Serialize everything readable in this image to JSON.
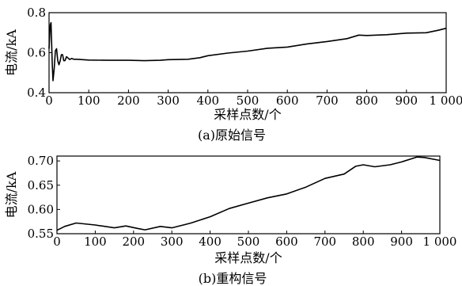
{
  "chart_data": [
    {
      "type": "line",
      "caption": "(a)原始信号",
      "xlabel": "采样点数/个",
      "ylabel": "电流/kA",
      "xlim": [
        0,
        1000
      ],
      "ylim": [
        0.4,
        0.8
      ],
      "x_ticks": [
        {
          "value": 0,
          "label": "0"
        },
        {
          "value": 100,
          "label": "100"
        },
        {
          "value": 200,
          "label": "200"
        },
        {
          "value": 300,
          "label": "300"
        },
        {
          "value": 400,
          "label": "400"
        },
        {
          "value": 500,
          "label": "500"
        },
        {
          "value": 600,
          "label": "600"
        },
        {
          "value": 700,
          "label": "700"
        },
        {
          "value": 800,
          "label": "800"
        },
        {
          "value": 900,
          "label": "900"
        },
        {
          "value": 1000,
          "label": "1 000"
        }
      ],
      "y_ticks": [
        {
          "value": 0.4,
          "label": "0.4"
        },
        {
          "value": 0.6,
          "label": "0.6"
        },
        {
          "value": 0.8,
          "label": "0.8"
        }
      ],
      "grid": false,
      "series": [
        {
          "color": "#000000",
          "points": [
            [
              0,
              0.62
            ],
            [
              3,
              0.74
            ],
            [
              5,
              0.75
            ],
            [
              8,
              0.55
            ],
            [
              10,
              0.46
            ],
            [
              13,
              0.52
            ],
            [
              16,
              0.61
            ],
            [
              19,
              0.62
            ],
            [
              22,
              0.56
            ],
            [
              25,
              0.54
            ],
            [
              28,
              0.56
            ],
            [
              31,
              0.59
            ],
            [
              34,
              0.59
            ],
            [
              37,
              0.56
            ],
            [
              40,
              0.56
            ],
            [
              44,
              0.58
            ],
            [
              48,
              0.573
            ],
            [
              52,
              0.566
            ],
            [
              57,
              0.571
            ],
            [
              62,
              0.567
            ],
            [
              70,
              0.567
            ],
            [
              100,
              0.563
            ],
            [
              150,
              0.562
            ],
            [
              200,
              0.562
            ],
            [
              240,
              0.56
            ],
            [
              280,
              0.562
            ],
            [
              300,
              0.565
            ],
            [
              350,
              0.567
            ],
            [
              380,
              0.575
            ],
            [
              400,
              0.585
            ],
            [
              450,
              0.598
            ],
            [
              500,
              0.608
            ],
            [
              550,
              0.622
            ],
            [
              600,
              0.628
            ],
            [
              650,
              0.644
            ],
            [
              700,
              0.656
            ],
            [
              750,
              0.67
            ],
            [
              780,
              0.688
            ],
            [
              800,
              0.686
            ],
            [
              850,
              0.69
            ],
            [
              900,
              0.698
            ],
            [
              950,
              0.7
            ],
            [
              980,
              0.712
            ],
            [
              1000,
              0.722
            ]
          ]
        }
      ]
    },
    {
      "type": "line",
      "caption": "(b)重构信号",
      "xlabel": "采样点数/个",
      "ylabel": "电流/kA",
      "xlim": [
        0,
        1000
      ],
      "ylim": [
        0.55,
        0.71
      ],
      "x_ticks": [
        {
          "value": 0,
          "label": "0"
        },
        {
          "value": 100,
          "label": "100"
        },
        {
          "value": 200,
          "label": "200"
        },
        {
          "value": 300,
          "label": "300"
        },
        {
          "value": 400,
          "label": "400"
        },
        {
          "value": 500,
          "label": "500"
        },
        {
          "value": 600,
          "label": "600"
        },
        {
          "value": 700,
          "label": "700"
        },
        {
          "value": 800,
          "label": "800"
        },
        {
          "value": 900,
          "label": "900"
        },
        {
          "value": 1000,
          "label": "1 000"
        }
      ],
      "y_ticks": [
        {
          "value": 0.55,
          "label": "0.55"
        },
        {
          "value": 0.6,
          "label": "0.60"
        },
        {
          "value": 0.65,
          "label": "0.65"
        },
        {
          "value": 0.7,
          "label": "0.70"
        }
      ],
      "grid": false,
      "series": [
        {
          "color": "#000000",
          "points": [
            [
              0,
              0.557
            ],
            [
              20,
              0.565
            ],
            [
              50,
              0.572
            ],
            [
              100,
              0.568
            ],
            [
              150,
              0.562
            ],
            [
              180,
              0.566
            ],
            [
              210,
              0.561
            ],
            [
              230,
              0.558
            ],
            [
              270,
              0.565
            ],
            [
              300,
              0.562
            ],
            [
              330,
              0.568
            ],
            [
              350,
              0.572
            ],
            [
              400,
              0.585
            ],
            [
              450,
              0.602
            ],
            [
              500,
              0.613
            ],
            [
              550,
              0.624
            ],
            [
              600,
              0.632
            ],
            [
              650,
              0.646
            ],
            [
              700,
              0.664
            ],
            [
              750,
              0.673
            ],
            [
              780,
              0.689
            ],
            [
              800,
              0.692
            ],
            [
              830,
              0.688
            ],
            [
              870,
              0.692
            ],
            [
              900,
              0.698
            ],
            [
              940,
              0.708
            ],
            [
              960,
              0.707
            ],
            [
              1000,
              0.701
            ]
          ]
        }
      ]
    }
  ]
}
